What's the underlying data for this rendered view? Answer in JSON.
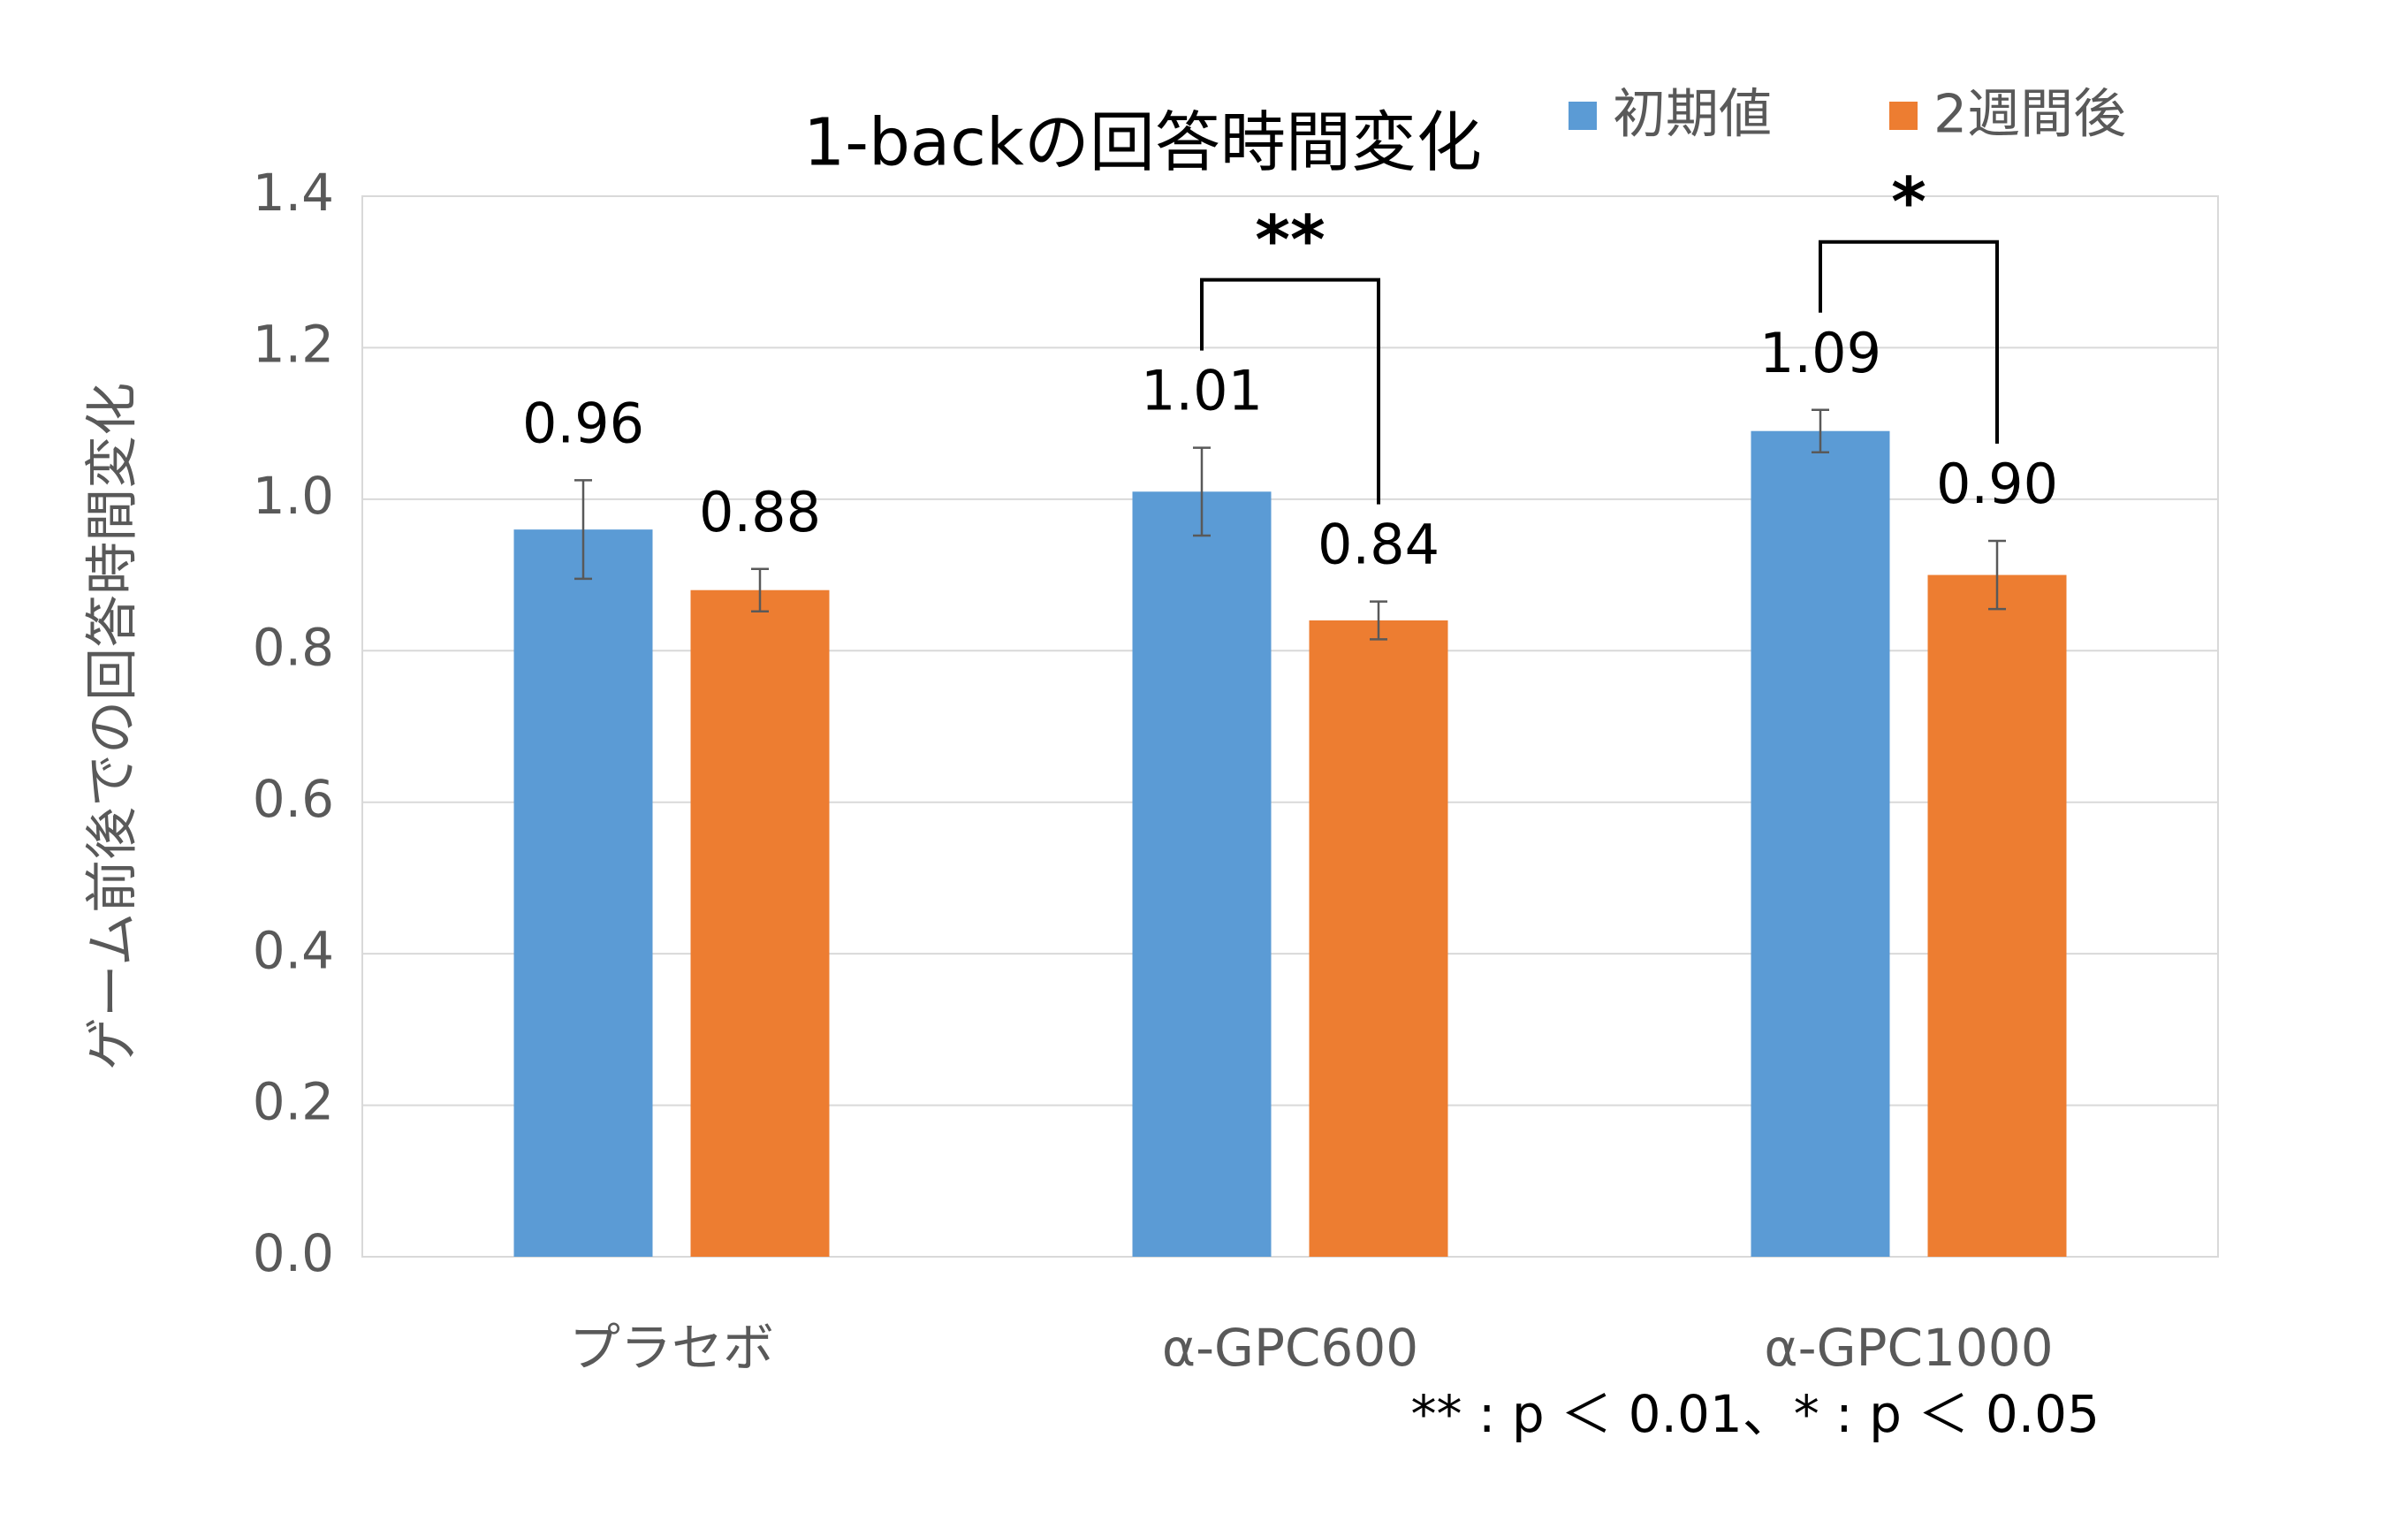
{
  "chart_data": {
    "type": "bar",
    "title": "1-backの回答時間変化",
    "y_label": "ゲーム前後での回答時間変化",
    "categories": [
      "プラセボ",
      "α-GPC600",
      "α-GPC1000"
    ],
    "series": [
      {
        "name": "初期値",
        "color": "#5b9bd5",
        "values": [
          0.96,
          1.01,
          1.09
        ],
        "value_labels": [
          "0.96",
          "1.01",
          "1.09"
        ],
        "errors": [
          0.065,
          0.058,
          0.028
        ]
      },
      {
        "name": "2週間後",
        "color": "#ed7d31",
        "values": [
          0.88,
          0.84,
          0.9
        ],
        "value_labels": [
          "0.88",
          "0.84",
          "0.90"
        ],
        "errors": [
          0.028,
          0.025,
          0.045
        ]
      }
    ],
    "ylim": [
      0,
      1.4
    ],
    "yticks": [
      {
        "value": 0,
        "label": "0.0"
      },
      0.2,
      0.4,
      0.6,
      0.8,
      {
        "value": 1,
        "label": "1.0"
      },
      1.2,
      1.4
    ],
    "grid": true,
    "legend": "top-right",
    "annotations": [
      "**",
      "*"
    ],
    "footnote": "** : p ＜ 0.01、* : p ＜ 0.05"
  }
}
